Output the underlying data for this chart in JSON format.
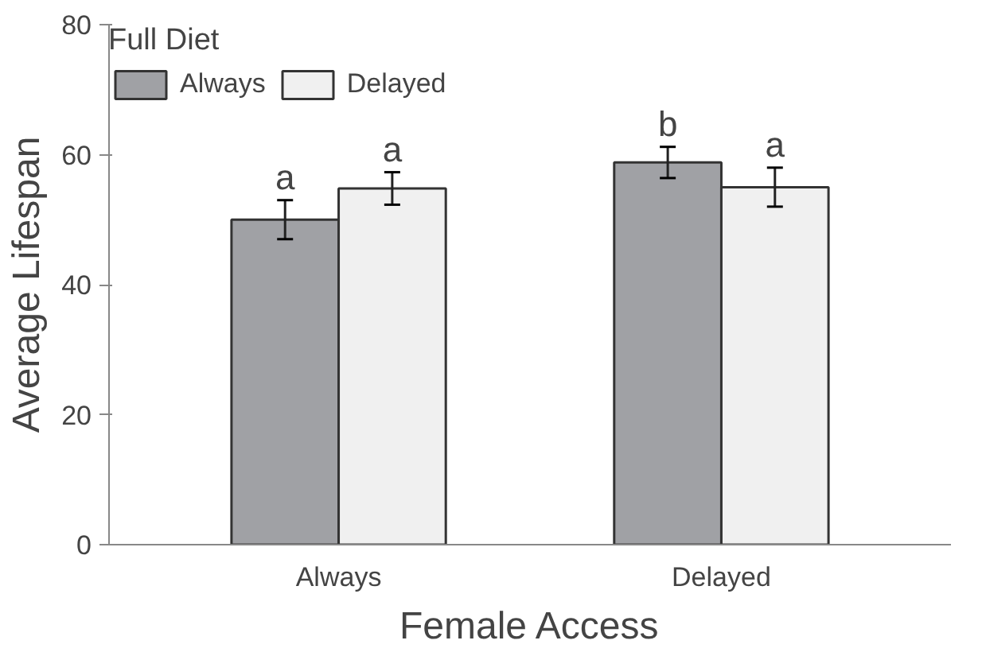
{
  "chart_data": {
    "type": "bar",
    "xlabel": "Female Access",
    "ylabel": "Average Lifespan",
    "legend_title": "Full Diet",
    "categories": [
      "Always",
      "Delayed"
    ],
    "series": [
      {
        "name": "Always",
        "color": "#a0a1a5",
        "values": [
          50,
          58.8
        ],
        "errors": [
          3,
          2.4
        ]
      },
      {
        "name": "Delayed",
        "color": "#f0f0f0",
        "values": [
          54.8,
          55
        ],
        "errors": [
          2.5,
          3
        ]
      }
    ],
    "ylim": [
      0,
      80
    ],
    "yticks": [
      0,
      20,
      40,
      60,
      80
    ],
    "grid": false,
    "legend": "top left",
    "annotations": [
      "a",
      "a",
      "b",
      "a"
    ]
  }
}
